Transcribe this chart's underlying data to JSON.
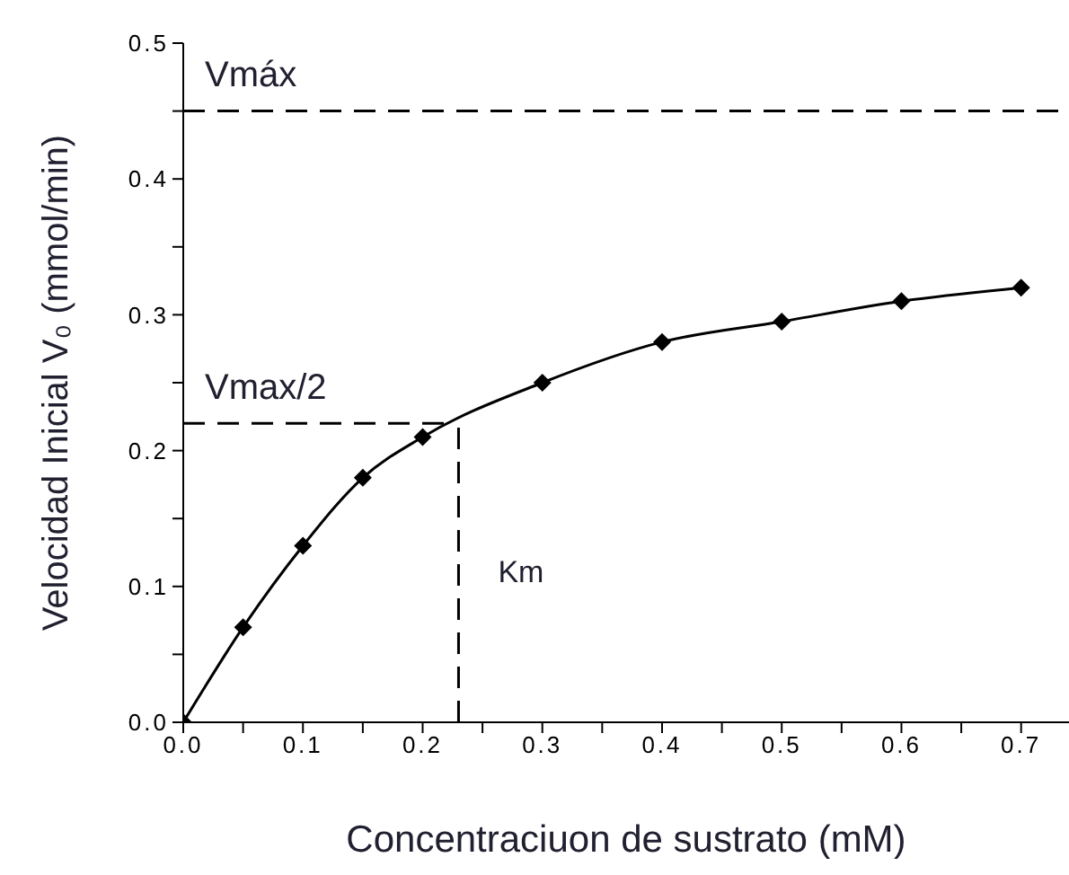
{
  "chart_data": {
    "type": "line",
    "xlabel": "Concentraciuon de sustrato (mM)",
    "ylabel": "Velocidad Inicial V₀ (mmol/min)",
    "x": [
      0,
      0.05,
      0.1,
      0.15,
      0.2,
      0.3,
      0.4,
      0.5,
      0.6,
      0.7
    ],
    "series": [
      {
        "color": "#000000",
        "values": [
          0,
          0.07,
          0.13,
          0.18,
          0.21,
          0.25,
          0.28,
          0.295,
          0.31,
          0.32
        ]
      }
    ],
    "xlim": [
      0,
      0.74
    ],
    "xticks": [
      {
        "value": 0,
        "label": "0.0"
      },
      {
        "value": 0.05,
        "label": null
      },
      0.1,
      {
        "value": 0.15,
        "label": null
      },
      0.2,
      {
        "value": 0.25,
        "label": null
      },
      0.3,
      {
        "value": 0.35,
        "label": null
      },
      0.4,
      {
        "value": 0.45,
        "label": null
      },
      0.5,
      {
        "value": 0.55,
        "label": null
      },
      0.6,
      {
        "value": 0.65,
        "label": null
      },
      0.7
    ],
    "ylim": [
      0,
      0.5
    ],
    "yticks": [
      {
        "value": 0,
        "label": "0.0"
      },
      {
        "value": 0.05,
        "label": null
      },
      0.1,
      {
        "value": 0.15,
        "label": null
      },
      0.2,
      {
        "value": 0.25,
        "label": null
      },
      0.3,
      {
        "value": 0.35,
        "label": null
      },
      0.4,
      {
        "value": 0.45,
        "label": null
      },
      0.5
    ],
    "ref_lines": [
      {
        "axis": "y",
        "value": 0.45,
        "label": "Vmáx",
        "line_style": "dashed",
        "color": "#000000"
      },
      {
        "axis": "y",
        "value": 0.22,
        "label": "Vmax/2",
        "line_style": "dashed",
        "color": "#000000"
      },
      {
        "axis": "x",
        "value": 0.23,
        "label": "Km",
        "line_style": "dashed",
        "color": "#000000"
      }
    ],
    "marker": "diamond",
    "line_style": "solid",
    "grid": false
  }
}
